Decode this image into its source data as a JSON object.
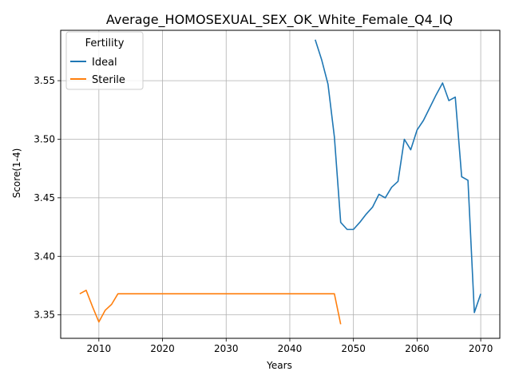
{
  "chart_data": {
    "type": "line",
    "title": "Average_HOMOSEXUAL_SEX_OK_White_Female_Q4_IQ",
    "xlabel": "Years",
    "ylabel": "Score(1-4)",
    "xlim": [
      2004,
      2073
    ],
    "ylim": [
      3.33,
      3.593
    ],
    "xticks": [
      2010,
      2020,
      2030,
      2040,
      2050,
      2060,
      2070
    ],
    "yticks": [
      3.35,
      3.4,
      3.45,
      3.5,
      3.55
    ],
    "xtick_labels": [
      "2010",
      "2020",
      "2030",
      "2040",
      "2050",
      "2060",
      "2070"
    ],
    "ytick_labels": [
      "3.35",
      "3.40",
      "3.45",
      "3.50",
      "3.55"
    ],
    "grid": true,
    "legend": {
      "title": "Fertility",
      "placement": "top-left"
    },
    "series": [
      {
        "name": "Ideal",
        "color": "#1f77b4",
        "x": [
          2044,
          2045,
          2046,
          2047,
          2048,
          2049,
          2050,
          2051,
          2052,
          2053,
          2054,
          2055,
          2056,
          2057,
          2058,
          2059,
          2060,
          2061,
          2062,
          2063,
          2064,
          2065,
          2066,
          2067,
          2068,
          2069,
          2070
        ],
        "y": [
          3.585,
          3.568,
          3.547,
          3.502,
          3.429,
          3.423,
          3.423,
          3.429,
          3.436,
          3.442,
          3.453,
          3.45,
          3.459,
          3.464,
          3.5,
          3.491,
          3.508,
          3.516,
          3.527,
          3.538,
          3.548,
          3.533,
          3.536,
          3.468,
          3.465,
          3.352,
          3.368
        ]
      },
      {
        "name": "Sterile",
        "color": "#ff7f0e",
        "x": [
          2007,
          2008,
          2009,
          2010,
          2011,
          2012,
          2013,
          2014,
          2020,
          2030,
          2040,
          2045,
          2047,
          2048
        ],
        "y": [
          3.368,
          3.371,
          3.357,
          3.344,
          3.354,
          3.359,
          3.368,
          3.368,
          3.368,
          3.368,
          3.368,
          3.368,
          3.368,
          3.342
        ]
      }
    ]
  }
}
